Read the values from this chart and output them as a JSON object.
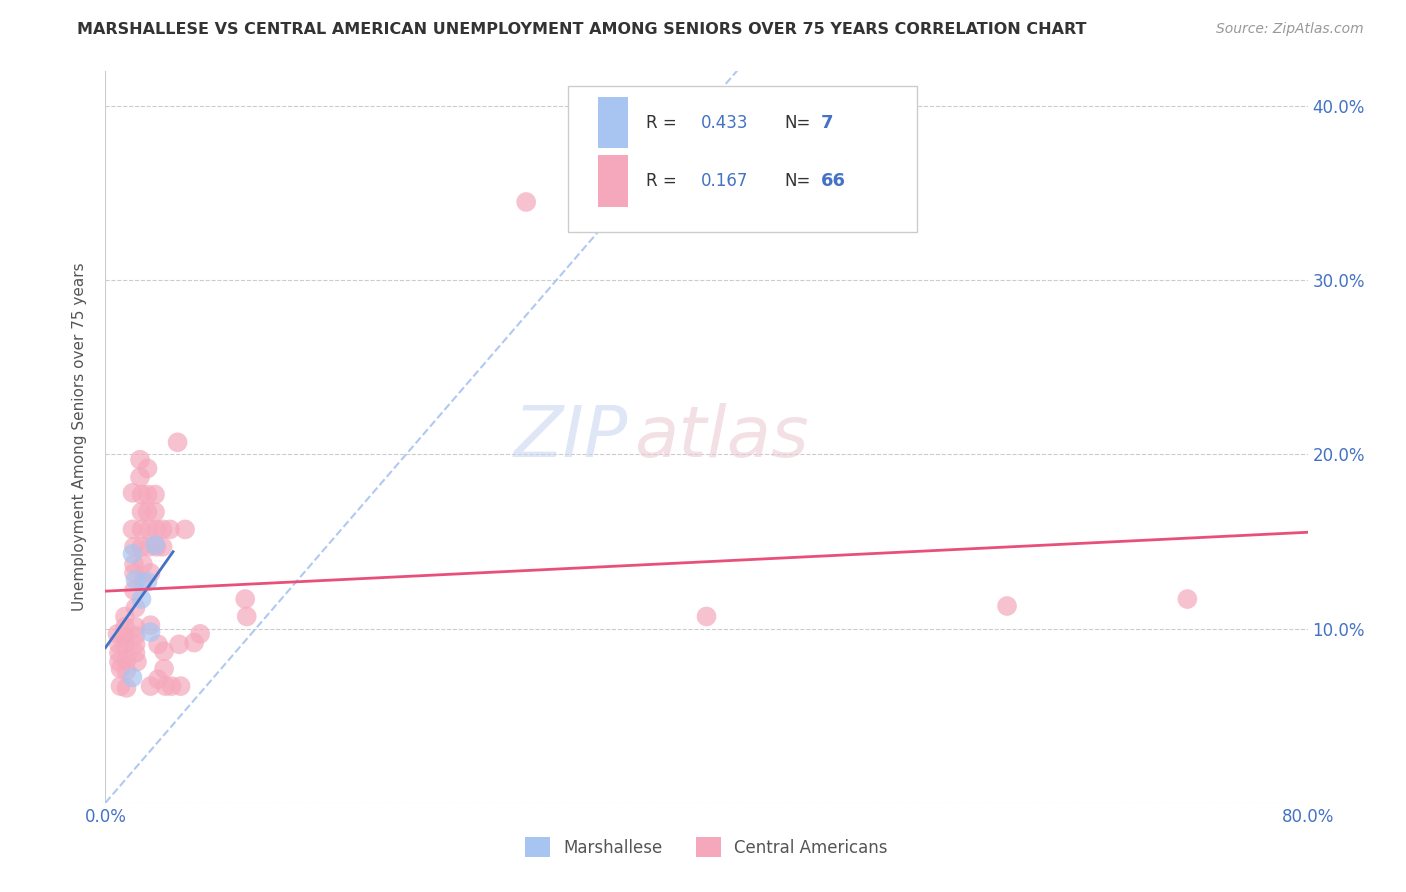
{
  "title": "MARSHALLESE VS CENTRAL AMERICAN UNEMPLOYMENT AMONG SENIORS OVER 75 YEARS CORRELATION CHART",
  "source": "Source: ZipAtlas.com",
  "ylabel": "Unemployment Among Seniors over 75 years",
  "xlim": [
    0.0,
    0.8
  ],
  "ylim": [
    0.0,
    0.42
  ],
  "watermark_zip": "ZIP",
  "watermark_atlas": "atlas",
  "legend": {
    "marshallese_R": "0.433",
    "marshallese_N": "7",
    "central_american_R": "0.167",
    "central_american_N": "66"
  },
  "marshallese_color": "#a8c4f0",
  "central_american_color": "#f5a8bc",
  "marshallese_line_color": "#4472c4",
  "central_american_line_color": "#e8507a",
  "diagonal_line_color": "#a8c4f0",
  "background_color": "#ffffff",
  "grid_color": "#cccccc",
  "axis_color": "#4472c4",
  "title_color": "#333333",
  "source_color": "#999999",
  "ylabel_color": "#555555",
  "marshallese_points": [
    [
      0.018,
      0.143
    ],
    [
      0.02,
      0.128
    ],
    [
      0.024,
      0.117
    ],
    [
      0.028,
      0.127
    ],
    [
      0.03,
      0.098
    ],
    [
      0.033,
      0.148
    ],
    [
      0.018,
      0.072
    ]
  ],
  "central_american_points": [
    [
      0.008,
      0.097
    ],
    [
      0.009,
      0.091
    ],
    [
      0.009,
      0.086
    ],
    [
      0.009,
      0.081
    ],
    [
      0.01,
      0.077
    ],
    [
      0.01,
      0.067
    ],
    [
      0.013,
      0.107
    ],
    [
      0.013,
      0.101
    ],
    [
      0.013,
      0.096
    ],
    [
      0.013,
      0.091
    ],
    [
      0.014,
      0.082
    ],
    [
      0.014,
      0.076
    ],
    [
      0.014,
      0.066
    ],
    [
      0.018,
      0.178
    ],
    [
      0.018,
      0.157
    ],
    [
      0.019,
      0.147
    ],
    [
      0.019,
      0.137
    ],
    [
      0.019,
      0.132
    ],
    [
      0.019,
      0.122
    ],
    [
      0.02,
      0.112
    ],
    [
      0.02,
      0.101
    ],
    [
      0.02,
      0.096
    ],
    [
      0.02,
      0.091
    ],
    [
      0.02,
      0.086
    ],
    [
      0.021,
      0.081
    ],
    [
      0.023,
      0.197
    ],
    [
      0.023,
      0.187
    ],
    [
      0.024,
      0.177
    ],
    [
      0.024,
      0.167
    ],
    [
      0.024,
      0.157
    ],
    [
      0.024,
      0.147
    ],
    [
      0.025,
      0.137
    ],
    [
      0.025,
      0.127
    ],
    [
      0.028,
      0.192
    ],
    [
      0.028,
      0.177
    ],
    [
      0.028,
      0.167
    ],
    [
      0.029,
      0.157
    ],
    [
      0.029,
      0.147
    ],
    [
      0.03,
      0.132
    ],
    [
      0.03,
      0.102
    ],
    [
      0.03,
      0.067
    ],
    [
      0.033,
      0.177
    ],
    [
      0.033,
      0.167
    ],
    [
      0.034,
      0.157
    ],
    [
      0.034,
      0.147
    ],
    [
      0.035,
      0.091
    ],
    [
      0.035,
      0.071
    ],
    [
      0.038,
      0.157
    ],
    [
      0.038,
      0.147
    ],
    [
      0.039,
      0.087
    ],
    [
      0.039,
      0.077
    ],
    [
      0.04,
      0.067
    ],
    [
      0.043,
      0.157
    ],
    [
      0.044,
      0.067
    ],
    [
      0.048,
      0.207
    ],
    [
      0.049,
      0.091
    ],
    [
      0.05,
      0.067
    ],
    [
      0.053,
      0.157
    ],
    [
      0.059,
      0.092
    ],
    [
      0.063,
      0.097
    ],
    [
      0.093,
      0.117
    ],
    [
      0.094,
      0.107
    ],
    [
      0.28,
      0.345
    ],
    [
      0.4,
      0.107
    ],
    [
      0.6,
      0.113
    ],
    [
      0.72,
      0.117
    ]
  ]
}
